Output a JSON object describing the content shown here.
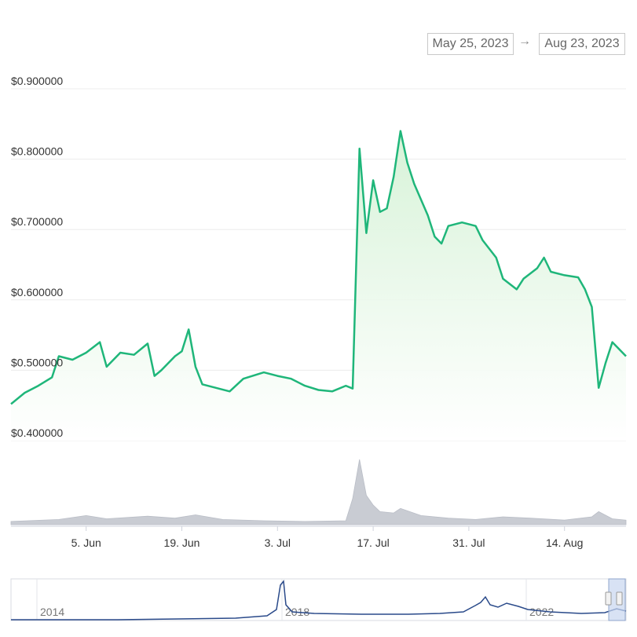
{
  "range": {
    "start": "May 25, 2023",
    "arrow": "→",
    "end": "Aug 23, 2023"
  },
  "colors": {
    "price_line": "#1fb67a",
    "area_top": "#d5f2d6",
    "volume": "#c9ccd3",
    "navigator_line": "#2a4a8a",
    "grid": "#ececec"
  },
  "chart_data": {
    "type": "line",
    "title": "",
    "xlabel": "",
    "ylabel": "",
    "x_range": [
      "2023-05-25",
      "2023-08-23"
    ],
    "ylim": [
      0.4,
      0.9
    ],
    "y_ticks": [
      "$0.900000",
      "$0.800000",
      "$0.700000",
      "$0.600000",
      "$0.500000",
      "$0.400000"
    ],
    "x_ticks": [
      {
        "date": "2023-06-05",
        "label": "5. Jun"
      },
      {
        "date": "2023-06-19",
        "label": "19. Jun"
      },
      {
        "date": "2023-07-03",
        "label": "3. Jul"
      },
      {
        "date": "2023-07-17",
        "label": "17. Jul"
      },
      {
        "date": "2023-07-31",
        "label": "31. Jul"
      },
      {
        "date": "2023-08-14",
        "label": "14. Aug"
      }
    ],
    "grid": true,
    "series": [
      {
        "points": [
          [
            "2023-05-25",
            0.452
          ],
          [
            "2023-05-27",
            0.468
          ],
          [
            "2023-05-29",
            0.478
          ],
          [
            "2023-05-31",
            0.49
          ],
          [
            "2023-06-01",
            0.52
          ],
          [
            "2023-06-03",
            0.515
          ],
          [
            "2023-06-05",
            0.525
          ],
          [
            "2023-06-07",
            0.54
          ],
          [
            "2023-06-08",
            0.505
          ],
          [
            "2023-06-10",
            0.525
          ],
          [
            "2023-06-12",
            0.522
          ],
          [
            "2023-06-14",
            0.538
          ],
          [
            "2023-06-15",
            0.492
          ],
          [
            "2023-06-16",
            0.5
          ],
          [
            "2023-06-18",
            0.52
          ],
          [
            "2023-06-19",
            0.527
          ],
          [
            "2023-06-20",
            0.558
          ],
          [
            "2023-06-21",
            0.505
          ],
          [
            "2023-06-22",
            0.48
          ],
          [
            "2023-06-24",
            0.475
          ],
          [
            "2023-06-26",
            0.47
          ],
          [
            "2023-06-28",
            0.488
          ],
          [
            "2023-07-01",
            0.497
          ],
          [
            "2023-07-03",
            0.492
          ],
          [
            "2023-07-05",
            0.488
          ],
          [
            "2023-07-07",
            0.478
          ],
          [
            "2023-07-09",
            0.472
          ],
          [
            "2023-07-11",
            0.47
          ],
          [
            "2023-07-13",
            0.478
          ],
          [
            "2023-07-14",
            0.474
          ],
          [
            "2023-07-15",
            0.815
          ],
          [
            "2023-07-16",
            0.695
          ],
          [
            "2023-07-17",
            0.77
          ],
          [
            "2023-07-18",
            0.725
          ],
          [
            "2023-07-19",
            0.73
          ],
          [
            "2023-07-20",
            0.775
          ],
          [
            "2023-07-21",
            0.84
          ],
          [
            "2023-07-22",
            0.795
          ],
          [
            "2023-07-23",
            0.765
          ],
          [
            "2023-07-25",
            0.72
          ],
          [
            "2023-07-26",
            0.69
          ],
          [
            "2023-07-27",
            0.68
          ],
          [
            "2023-07-28",
            0.705
          ],
          [
            "2023-07-30",
            0.71
          ],
          [
            "2023-08-01",
            0.705
          ],
          [
            "2023-08-02",
            0.685
          ],
          [
            "2023-08-04",
            0.66
          ],
          [
            "2023-08-05",
            0.63
          ],
          [
            "2023-08-07",
            0.615
          ],
          [
            "2023-08-08",
            0.63
          ],
          [
            "2023-08-10",
            0.645
          ],
          [
            "2023-08-11",
            0.66
          ],
          [
            "2023-08-12",
            0.64
          ],
          [
            "2023-08-14",
            0.635
          ],
          [
            "2023-08-16",
            0.632
          ],
          [
            "2023-08-17",
            0.615
          ],
          [
            "2023-08-18",
            0.59
          ],
          [
            "2023-08-19",
            0.475
          ],
          [
            "2023-08-20",
            0.51
          ],
          [
            "2023-08-21",
            0.54
          ],
          [
            "2023-08-23",
            0.52
          ]
        ]
      }
    ],
    "volume": {
      "points": [
        [
          "2023-05-25",
          0.05
        ],
        [
          "2023-06-01",
          0.08
        ],
        [
          "2023-06-05",
          0.14
        ],
        [
          "2023-06-08",
          0.09
        ],
        [
          "2023-06-14",
          0.13
        ],
        [
          "2023-06-18",
          0.1
        ],
        [
          "2023-06-21",
          0.15
        ],
        [
          "2023-06-25",
          0.08
        ],
        [
          "2023-07-01",
          0.06
        ],
        [
          "2023-07-07",
          0.05
        ],
        [
          "2023-07-13",
          0.06
        ],
        [
          "2023-07-14",
          0.4
        ],
        [
          "2023-07-15",
          1.0
        ],
        [
          "2023-07-16",
          0.45
        ],
        [
          "2023-07-17",
          0.3
        ],
        [
          "2023-07-18",
          0.2
        ],
        [
          "2023-07-20",
          0.18
        ],
        [
          "2023-07-21",
          0.25
        ],
        [
          "2023-07-24",
          0.14
        ],
        [
          "2023-07-28",
          0.1
        ],
        [
          "2023-08-01",
          0.08
        ],
        [
          "2023-08-05",
          0.12
        ],
        [
          "2023-08-09",
          0.1
        ],
        [
          "2023-08-14",
          0.07
        ],
        [
          "2023-08-18",
          0.12
        ],
        [
          "2023-08-19",
          0.2
        ],
        [
          "2023-08-21",
          0.09
        ],
        [
          "2023-08-23",
          0.07
        ]
      ]
    },
    "navigator": {
      "year_labels": [
        "2014",
        "2018",
        "2022"
      ]
    }
  }
}
